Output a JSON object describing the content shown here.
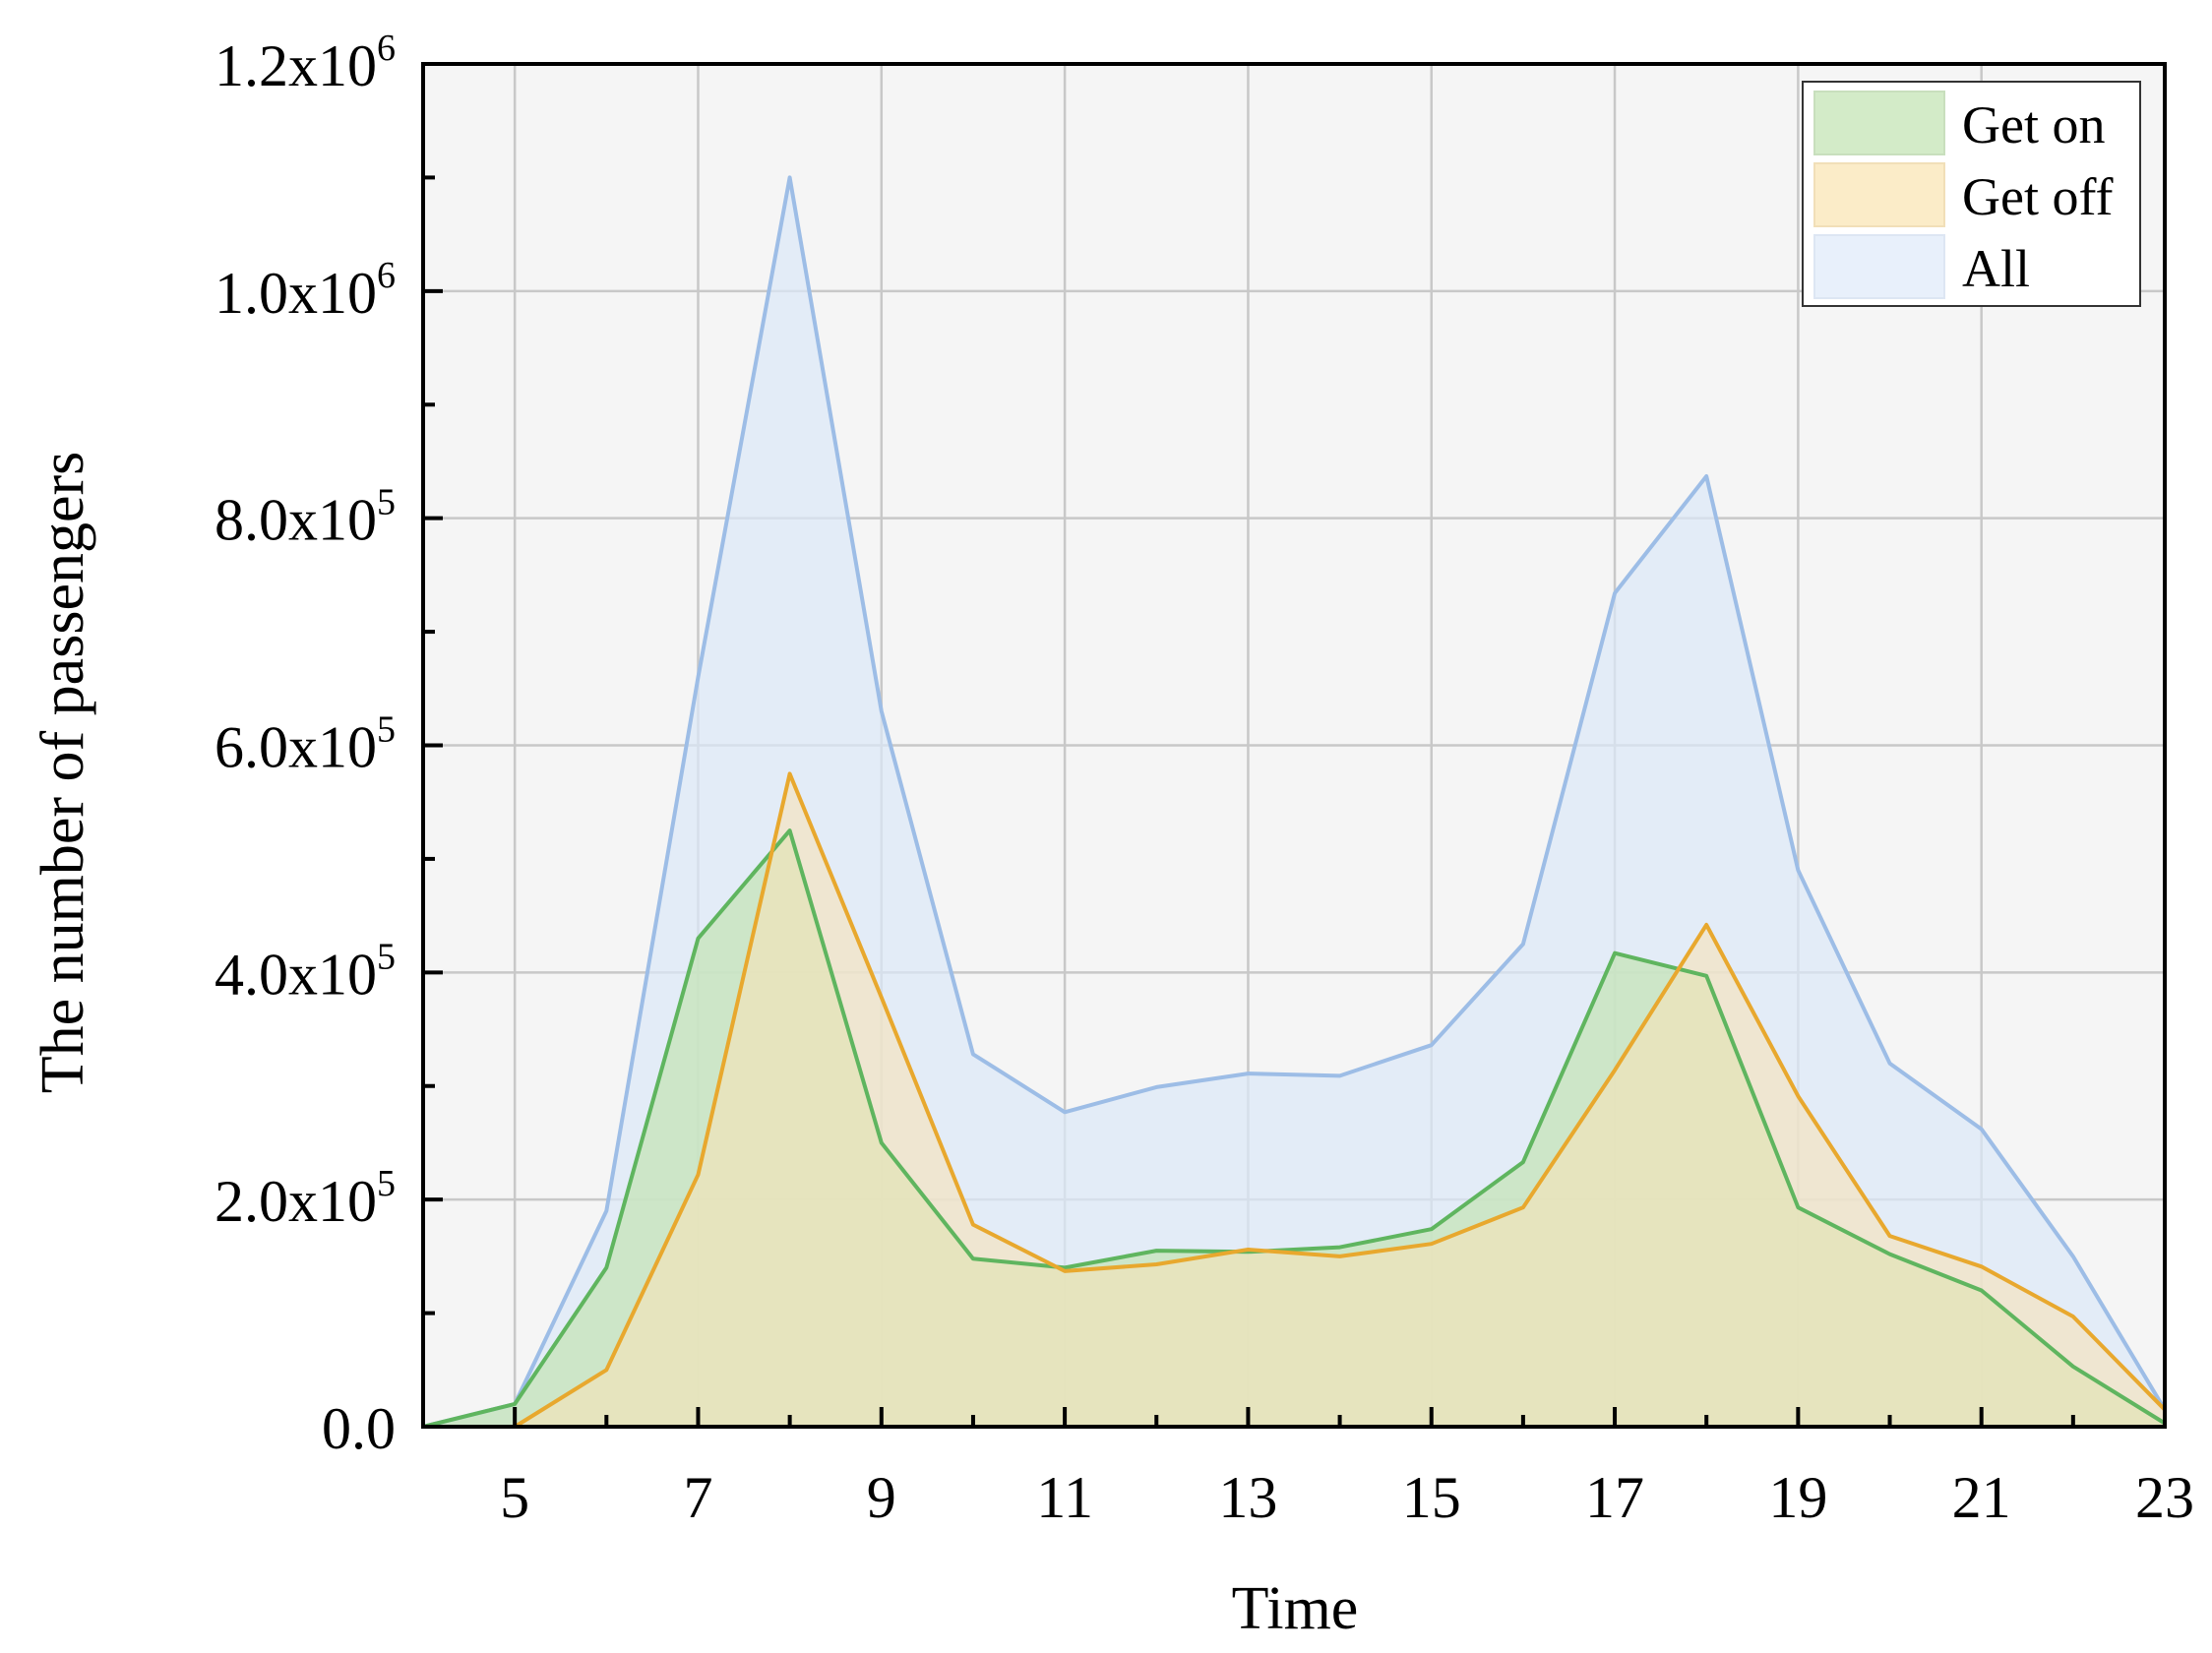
{
  "chart_data": {
    "type": "area",
    "xlabel": "Time",
    "ylabel": "The number of passengers",
    "xlim": [
      4,
      23
    ],
    "ylim": [
      0,
      1200000
    ],
    "x_ticks": [
      5,
      7,
      9,
      11,
      13,
      15,
      17,
      19,
      21,
      23
    ],
    "y_ticks": [
      {
        "mantissa": "0.0",
        "exponent": ""
      },
      {
        "mantissa": "2.0x10",
        "exponent": "5"
      },
      {
        "mantissa": "4.0x10",
        "exponent": "5"
      },
      {
        "mantissa": "6.0x10",
        "exponent": "5"
      },
      {
        "mantissa": "8.0x10",
        "exponent": "5"
      },
      {
        "mantissa": "1.0x10",
        "exponent": "6"
      },
      {
        "mantissa": "1.2x10",
        "exponent": "6"
      }
    ],
    "y_tick_values": [
      0,
      200000,
      400000,
      600000,
      800000,
      1000000,
      1200000
    ],
    "grid": true,
    "legend_position": "top-right",
    "x": [
      4,
      5,
      6,
      7,
      8,
      9,
      10,
      11,
      12,
      13,
      14,
      15,
      16,
      17,
      18,
      19,
      20,
      21,
      22,
      23
    ],
    "series": [
      {
        "name": "All",
        "line_color": "#9dbde6",
        "fill_color": "#dce8f8",
        "fill_opacity": 0.7,
        "values": [
          0,
          20000,
          190000,
          660000,
          1100000,
          630000,
          328000,
          277000,
          299000,
          311000,
          309000,
          336000,
          425000,
          734000,
          837000,
          490000,
          320000,
          262000,
          150000,
          15000
        ]
      },
      {
        "name": "Get on",
        "line_color": "#5fb55f",
        "fill_color": "#c5e4b8",
        "fill_opacity": 0.75,
        "values": [
          0,
          20000,
          140000,
          430000,
          525000,
          250000,
          148000,
          140000,
          155000,
          154000,
          158000,
          174000,
          233000,
          417000,
          397000,
          193000,
          152000,
          120000,
          53000,
          3000
        ]
      },
      {
        "name": "Get off",
        "line_color": "#e8a82e",
        "fill_color": "#f7e2b8",
        "fill_opacity": 0.6,
        "values": [
          0,
          0,
          50000,
          222000,
          575000,
          378000,
          178000,
          137000,
          143000,
          156000,
          150000,
          161000,
          193000,
          314000,
          442000,
          291000,
          168000,
          141000,
          97000,
          15000
        ]
      }
    ],
    "legend": [
      {
        "label": "Get on",
        "color": "#d3ebc8",
        "border": "#c8dfbd"
      },
      {
        "label": "Get off",
        "color": "#fbecc8",
        "border": "#f1dfb8"
      },
      {
        "label": "All",
        "color": "#e8f0fb",
        "border": "#dde6f3"
      }
    ],
    "colors": {
      "plot_background": "#f5f5f5",
      "grid": "#c8c8c8",
      "axis": "#000000"
    }
  }
}
